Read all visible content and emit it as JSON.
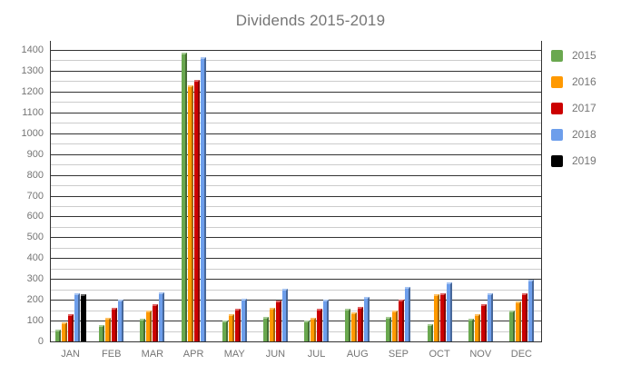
{
  "title": "Dividends 2015-2019",
  "colors": {
    "background": "#ffffff",
    "text": "#757575",
    "grid_major": "#333333",
    "grid_minor": "#cccccc"
  },
  "legend": {
    "position": "right",
    "items": [
      {
        "label": "2015",
        "color": "#6aa84f"
      },
      {
        "label": "2016",
        "color": "#ff9900"
      },
      {
        "label": "2017",
        "color": "#cc0000"
      },
      {
        "label": "2018",
        "color": "#6d9eeb"
      },
      {
        "label": "2019",
        "color": "#000000"
      }
    ]
  },
  "chart_data": {
    "type": "bar",
    "title": "Dividends 2015-2019",
    "xlabel": "",
    "ylabel": "",
    "ylim": [
      0,
      1400
    ],
    "y_ticks": [
      0,
      100,
      200,
      300,
      400,
      500,
      600,
      700,
      800,
      900,
      1000,
      1100,
      1200,
      1300,
      1400
    ],
    "y_minor_tick_interval": 50,
    "grid": true,
    "legend_position": "right",
    "categories": [
      "JAN",
      "FEB",
      "MAR",
      "APR",
      "MAY",
      "JUN",
      "JUL",
      "AUG",
      "SEP",
      "OCT",
      "NOV",
      "DEC"
    ],
    "series": [
      {
        "name": "2015",
        "color": "#6aa84f",
        "values": [
          55,
          80,
          110,
          1385,
          100,
          120,
          100,
          155,
          120,
          85,
          110,
          150
        ]
      },
      {
        "name": "2016",
        "color": "#ff9900",
        "values": [
          90,
          115,
          150,
          1230,
          130,
          160,
          115,
          140,
          150,
          225,
          130,
          190
        ]
      },
      {
        "name": "2017",
        "color": "#cc0000",
        "values": [
          130,
          160,
          180,
          1255,
          155,
          195,
          155,
          165,
          200,
          230,
          180,
          230
        ]
      },
      {
        "name": "2018",
        "color": "#6d9eeb",
        "values": [
          230,
          200,
          235,
          1365,
          205,
          255,
          200,
          215,
          260,
          285,
          230,
          295
        ]
      },
      {
        "name": "2019",
        "color": "#000000",
        "values": [
          225,
          null,
          null,
          null,
          null,
          null,
          null,
          null,
          null,
          null,
          null,
          null
        ]
      }
    ]
  }
}
